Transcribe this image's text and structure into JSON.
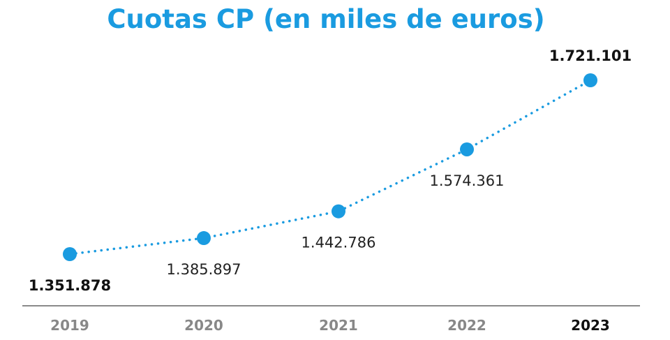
{
  "chart_data": {
    "type": "line",
    "title": "Cuotas CP (en miles de euros)",
    "x": [
      "2019",
      "2020",
      "2021",
      "2022",
      "2023"
    ],
    "series": [
      {
        "values": [
          1351878,
          1385897,
          1442786,
          1574361,
          1721101
        ],
        "labels": [
          "1.351.878",
          "1.385.897",
          "1.442.786",
          "1.574.361",
          "1.721.101"
        ]
      }
    ],
    "highlight": [
      "2019",
      "2023"
    ],
    "line_style": "dotted",
    "color": "#1a9be0",
    "xlabel": "",
    "ylabel": "",
    "grid": false,
    "legend": "none"
  }
}
